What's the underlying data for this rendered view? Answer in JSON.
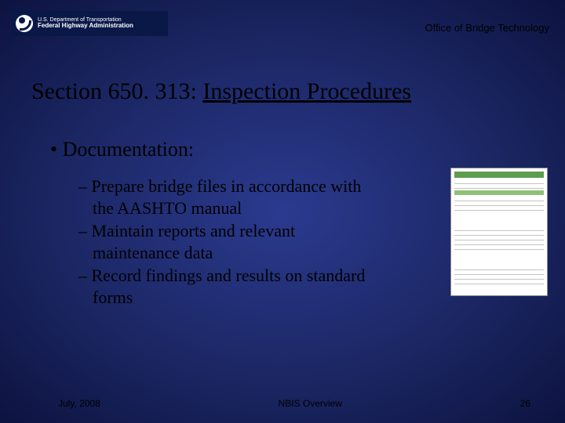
{
  "header": {
    "line1": "U.S. Department of Transportation",
    "line2": "Federal Highway Administration",
    "office_label": "Office of Bridge Technology"
  },
  "title": {
    "prefix": "Section 650. 313:  ",
    "underlined": "Inspection Procedures"
  },
  "content": {
    "main_bullet": "Documentation:",
    "sub_bullets": [
      "Prepare bridge files in accordance with the AASHTO manual",
      "Maintain reports and relevant maintenance data",
      "Record findings and results on standard forms"
    ]
  },
  "footer": {
    "date": "July, 2008",
    "center": "NBIS Overview",
    "page": "26"
  },
  "colors": {
    "background_center": "#2b3a8f",
    "background_edge": "#0d1340",
    "text": "#000000",
    "header_bg": "#0a1848",
    "form_green": "#5e9c4f"
  },
  "typography": {
    "title_fontsize": 30,
    "bullet_fontsize": 26,
    "subbullet_fontsize": 22,
    "footer_fontsize": 12,
    "font_family": "Times New Roman"
  }
}
